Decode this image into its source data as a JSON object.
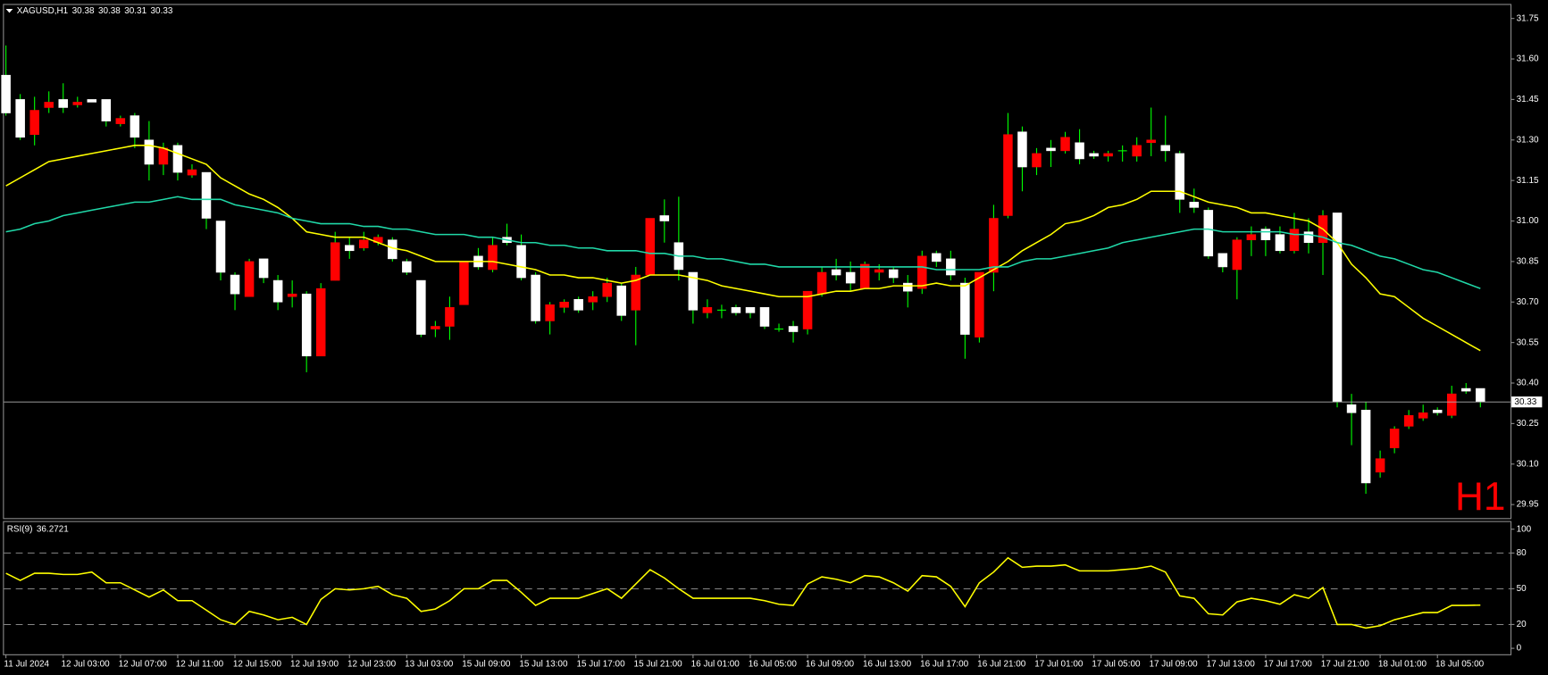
{
  "chart_data": [
    {
      "type": "candlestick",
      "title": "XAGUSD,H1",
      "watermark": "H1",
      "categories": [
        "11 Jul 2024",
        null,
        null,
        null,
        "12 Jul 03:00",
        null,
        null,
        null,
        "12 Jul 07:00",
        null,
        null,
        null,
        "12 Jul 11:00",
        null,
        null,
        null,
        "12 Jul 15:00",
        null,
        null,
        null,
        "12 Jul 19:00",
        null,
        null,
        null,
        "12 Jul 23:00",
        null,
        null,
        null,
        "13 Jul 03:00",
        null,
        null,
        null,
        "15 Jul 09:00",
        null,
        null,
        null,
        "15 Jul 13:00",
        null,
        null,
        null,
        "15 Jul 17:00",
        null,
        null,
        null,
        "15 Jul 21:00",
        null,
        null,
        null,
        "16 Jul 01:00",
        null,
        null,
        null,
        "16 Jul 05:00",
        null,
        null,
        null,
        "16 Jul 09:00",
        null,
        null,
        null,
        "16 Jul 13:00",
        null,
        null,
        null,
        "16 Jul 17:00",
        null,
        null,
        null,
        "16 Jul 21:00",
        null,
        null,
        null,
        "17 Jul 01:00",
        null,
        null,
        null,
        "17 Jul 05:00",
        null,
        null,
        null,
        "17 Jul 09:00",
        null,
        null,
        null,
        "17 Jul 13:00",
        null,
        null,
        null,
        "17 Jul 17:00",
        null,
        null,
        null,
        "17 Jul 21:00",
        null,
        null,
        null,
        "18 Jul 01:00",
        null,
        null,
        null,
        "18 Jul 05:00",
        null,
        null,
        null
      ],
      "open": [
        31.54,
        31.45,
        31.32,
        31.42,
        31.45,
        31.43,
        31.45,
        31.45,
        31.36,
        31.39,
        31.3,
        31.21,
        31.28,
        31.17,
        31.18,
        31.0,
        30.8,
        30.72,
        30.86,
        30.78,
        30.72,
        30.73,
        30.5,
        30.78,
        30.91,
        30.9,
        30.92,
        30.93,
        30.85,
        30.78,
        30.6,
        30.61,
        30.69,
        30.87,
        30.82,
        30.94,
        30.91,
        30.8,
        30.63,
        30.68,
        30.71,
        30.7,
        30.72,
        30.76,
        30.67,
        30.8,
        31.02,
        30.92,
        30.81,
        30.66,
        30.67,
        30.68,
        30.68,
        30.68,
        30.6,
        30.61,
        30.6,
        30.73,
        30.82,
        30.81,
        30.75,
        30.81,
        30.82,
        30.77,
        30.75,
        30.88,
        30.86,
        30.77,
        30.57,
        30.81,
        31.02,
        31.33,
        31.2,
        31.27,
        31.26,
        31.29,
        31.25,
        31.24,
        31.26,
        31.24,
        31.29,
        31.28,
        31.25,
        31.07,
        31.04,
        30.88,
        30.82,
        30.93,
        30.97,
        30.95,
        30.89,
        30.96,
        30.92,
        31.03,
        30.32,
        30.3,
        30.07,
        30.16,
        30.24,
        30.27,
        30.3,
        30.28,
        30.38,
        30.38
      ],
      "high": [
        31.65,
        31.47,
        31.46,
        31.48,
        31.51,
        31.46,
        31.45,
        31.45,
        31.39,
        31.4,
        31.37,
        31.29,
        31.29,
        31.21,
        31.18,
        31.0,
        30.81,
        30.86,
        30.86,
        30.8,
        30.78,
        30.74,
        30.77,
        30.96,
        30.94,
        30.96,
        30.95,
        30.94,
        30.86,
        30.78,
        30.63,
        30.72,
        30.85,
        30.9,
        30.94,
        30.99,
        30.95,
        30.81,
        30.7,
        30.71,
        30.72,
        30.74,
        30.79,
        30.77,
        30.83,
        31.01,
        31.08,
        31.09,
        30.81,
        30.71,
        30.69,
        30.69,
        30.68,
        30.68,
        30.62,
        30.63,
        30.74,
        30.83,
        30.86,
        30.85,
        30.85,
        30.84,
        30.83,
        30.8,
        30.89,
        30.89,
        30.89,
        30.79,
        30.81,
        31.06,
        31.4,
        31.35,
        31.27,
        31.3,
        31.33,
        31.34,
        31.26,
        31.26,
        31.28,
        31.31,
        31.42,
        31.39,
        31.26,
        31.12,
        31.05,
        30.88,
        30.94,
        30.98,
        30.98,
        30.98,
        31.03,
        31.01,
        31.04,
        31.03,
        30.36,
        30.33,
        30.15,
        30.24,
        30.3,
        30.32,
        30.31,
        30.39,
        30.4,
        30.38
      ],
      "low": [
        31.39,
        31.3,
        31.28,
        31.4,
        31.4,
        31.42,
        31.44,
        31.35,
        31.35,
        31.27,
        31.15,
        31.17,
        31.15,
        31.16,
        30.97,
        30.78,
        30.67,
        30.72,
        30.77,
        30.67,
        30.68,
        30.44,
        30.5,
        30.78,
        30.86,
        30.89,
        30.91,
        30.85,
        30.8,
        30.57,
        30.57,
        30.56,
        30.69,
        30.82,
        30.81,
        30.91,
        30.78,
        30.62,
        30.58,
        30.66,
        30.66,
        30.67,
        30.7,
        30.63,
        30.54,
        30.8,
        30.92,
        30.78,
        30.62,
        30.64,
        30.64,
        30.65,
        30.64,
        30.6,
        30.59,
        30.55,
        30.58,
        30.72,
        30.78,
        30.74,
        30.75,
        30.78,
        30.77,
        30.68,
        30.73,
        30.83,
        30.78,
        30.49,
        30.55,
        30.74,
        31.01,
        31.11,
        31.17,
        31.2,
        31.25,
        31.21,
        31.23,
        31.22,
        31.22,
        31.22,
        31.24,
        31.22,
        31.03,
        31.03,
        30.86,
        30.81,
        30.71,
        30.87,
        30.87,
        30.88,
        30.88,
        30.88,
        30.8,
        30.31,
        30.17,
        29.99,
        30.05,
        30.14,
        30.23,
        30.26,
        30.28,
        30.27,
        30.36,
        30.31
      ],
      "close": [
        31.4,
        31.31,
        31.41,
        31.44,
        31.42,
        31.44,
        31.44,
        31.37,
        31.38,
        31.31,
        31.21,
        31.27,
        31.18,
        31.19,
        31.01,
        30.81,
        30.73,
        30.85,
        30.79,
        30.7,
        30.73,
        30.5,
        30.75,
        30.92,
        30.89,
        30.93,
        30.94,
        30.86,
        30.81,
        30.58,
        30.61,
        30.68,
        30.85,
        30.83,
        30.91,
        30.92,
        30.79,
        30.63,
        30.69,
        30.7,
        30.67,
        30.72,
        30.77,
        30.65,
        30.8,
        31.01,
        31.0,
        30.82,
        30.67,
        30.68,
        30.67,
        30.66,
        30.66,
        30.61,
        30.6,
        30.59,
        30.74,
        30.81,
        30.8,
        30.77,
        30.84,
        30.82,
        30.79,
        30.74,
        30.87,
        30.85,
        30.8,
        30.58,
        30.81,
        31.01,
        31.32,
        31.2,
        31.25,
        31.26,
        31.31,
        31.23,
        31.24,
        31.25,
        31.26,
        31.28,
        31.3,
        31.26,
        31.08,
        31.05,
        30.87,
        30.83,
        30.93,
        30.95,
        30.93,
        30.89,
        30.97,
        30.92,
        31.02,
        30.33,
        30.29,
        30.03,
        30.12,
        30.23,
        30.28,
        30.29,
        30.29,
        30.36,
        30.37,
        30.33
      ],
      "overlays": [
        {
          "color": "#ffff00",
          "values": [
            31.13,
            31.16,
            31.19,
            31.22,
            31.23,
            31.24,
            31.25,
            31.26,
            31.27,
            31.28,
            31.28,
            31.27,
            31.25,
            31.23,
            31.21,
            31.16,
            31.13,
            31.1,
            31.08,
            31.05,
            31.01,
            30.96,
            30.95,
            30.94,
            30.94,
            30.94,
            30.92,
            30.9,
            30.89,
            30.87,
            30.85,
            30.85,
            30.85,
            30.85,
            30.85,
            30.84,
            30.83,
            30.82,
            30.8,
            30.8,
            30.79,
            30.79,
            30.78,
            30.77,
            30.78,
            30.8,
            30.8,
            30.8,
            30.79,
            30.78,
            30.76,
            30.75,
            30.74,
            30.73,
            30.72,
            30.72,
            30.72,
            30.73,
            30.74,
            30.74,
            30.75,
            30.75,
            30.76,
            30.76,
            30.76,
            30.77,
            30.76,
            30.76,
            30.79,
            30.82,
            30.85,
            30.89,
            30.92,
            30.95,
            30.99,
            31.0,
            31.02,
            31.05,
            31.06,
            31.08,
            31.11,
            31.11,
            31.11,
            31.09,
            31.07,
            31.06,
            31.05,
            31.03,
            31.03,
            31.02,
            31.01,
            31.0,
            30.97,
            30.92,
            30.84,
            30.79,
            30.73,
            30.72,
            30.68,
            30.64,
            30.61,
            30.58,
            30.55,
            30.52
          ]
        },
        {
          "color": "#20d8a8",
          "values": [
            30.96,
            30.97,
            30.99,
            31.0,
            31.02,
            31.03,
            31.04,
            31.05,
            31.06,
            31.07,
            31.07,
            31.08,
            31.09,
            31.08,
            31.08,
            31.08,
            31.06,
            31.05,
            31.04,
            31.03,
            31.01,
            31.0,
            30.99,
            30.99,
            30.99,
            30.98,
            30.98,
            30.97,
            30.97,
            30.96,
            30.95,
            30.95,
            30.95,
            30.94,
            30.94,
            30.93,
            30.92,
            30.92,
            30.91,
            30.91,
            30.9,
            30.9,
            30.89,
            30.89,
            30.89,
            30.88,
            30.88,
            30.87,
            30.87,
            30.86,
            30.86,
            30.85,
            30.84,
            30.84,
            30.83,
            30.83,
            30.83,
            30.83,
            30.83,
            30.83,
            30.83,
            30.83,
            30.83,
            30.83,
            30.83,
            30.82,
            30.82,
            30.82,
            30.82,
            30.83,
            30.83,
            30.85,
            30.86,
            30.86,
            30.87,
            30.88,
            30.89,
            30.9,
            30.92,
            30.93,
            30.94,
            30.95,
            30.96,
            30.97,
            30.97,
            30.96,
            30.96,
            30.96,
            30.96,
            30.96,
            30.95,
            30.95,
            30.94,
            30.92,
            30.91,
            30.89,
            30.87,
            30.86,
            30.84,
            30.82,
            30.81,
            30.79,
            30.77,
            30.75
          ]
        }
      ],
      "up_color": "#ff0000",
      "down_color": "#ffffff",
      "wick_color": "#00ff00",
      "ylim": [
        29.9,
        31.8
      ],
      "yticks": [
        29.95,
        {
          "value": 30.1,
          "label": "30.10"
        },
        30.25,
        {
          "value": 30.4,
          "label": "30.40"
        },
        30.55,
        {
          "value": 30.7,
          "label": "30.70"
        },
        30.85,
        {
          "value": 31.0,
          "label": "31.00"
        },
        31.15,
        {
          "value": 31.3,
          "label": "31.30"
        },
        31.45,
        {
          "value": 31.6,
          "label": "31.60"
        },
        31.75
      ],
      "grid": false
    },
    {
      "type": "line",
      "title": "RSI(9)",
      "color": "#ffff00",
      "values": [
        63,
        57,
        63,
        63,
        62,
        62,
        64,
        55,
        55,
        49,
        43,
        49,
        40,
        40,
        32,
        24,
        20,
        31,
        28,
        24,
        26,
        20,
        41,
        50,
        49,
        50,
        52,
        45,
        42,
        31,
        33,
        40,
        50,
        50,
        57,
        57,
        47,
        36,
        42,
        42,
        42,
        46,
        50,
        42,
        54,
        66,
        59,
        50,
        42,
        42,
        42,
        42,
        42,
        40,
        37,
        36,
        54,
        60,
        58,
        55,
        61,
        60,
        55,
        48,
        61,
        60,
        52,
        35,
        55,
        64,
        76,
        68,
        69,
        69,
        70,
        65,
        65,
        65,
        66,
        67,
        69,
        64,
        44,
        42,
        29,
        28,
        39,
        42,
        40,
        37,
        45,
        42,
        51,
        20,
        20,
        17,
        19,
        24,
        27,
        30,
        30,
        36,
        36,
        36.2721
      ],
      "ylim": [
        -5,
        106
      ],
      "yticks": [
        0,
        20,
        50,
        80,
        100
      ],
      "levels": [
        20,
        50,
        80
      ]
    }
  ]
}
